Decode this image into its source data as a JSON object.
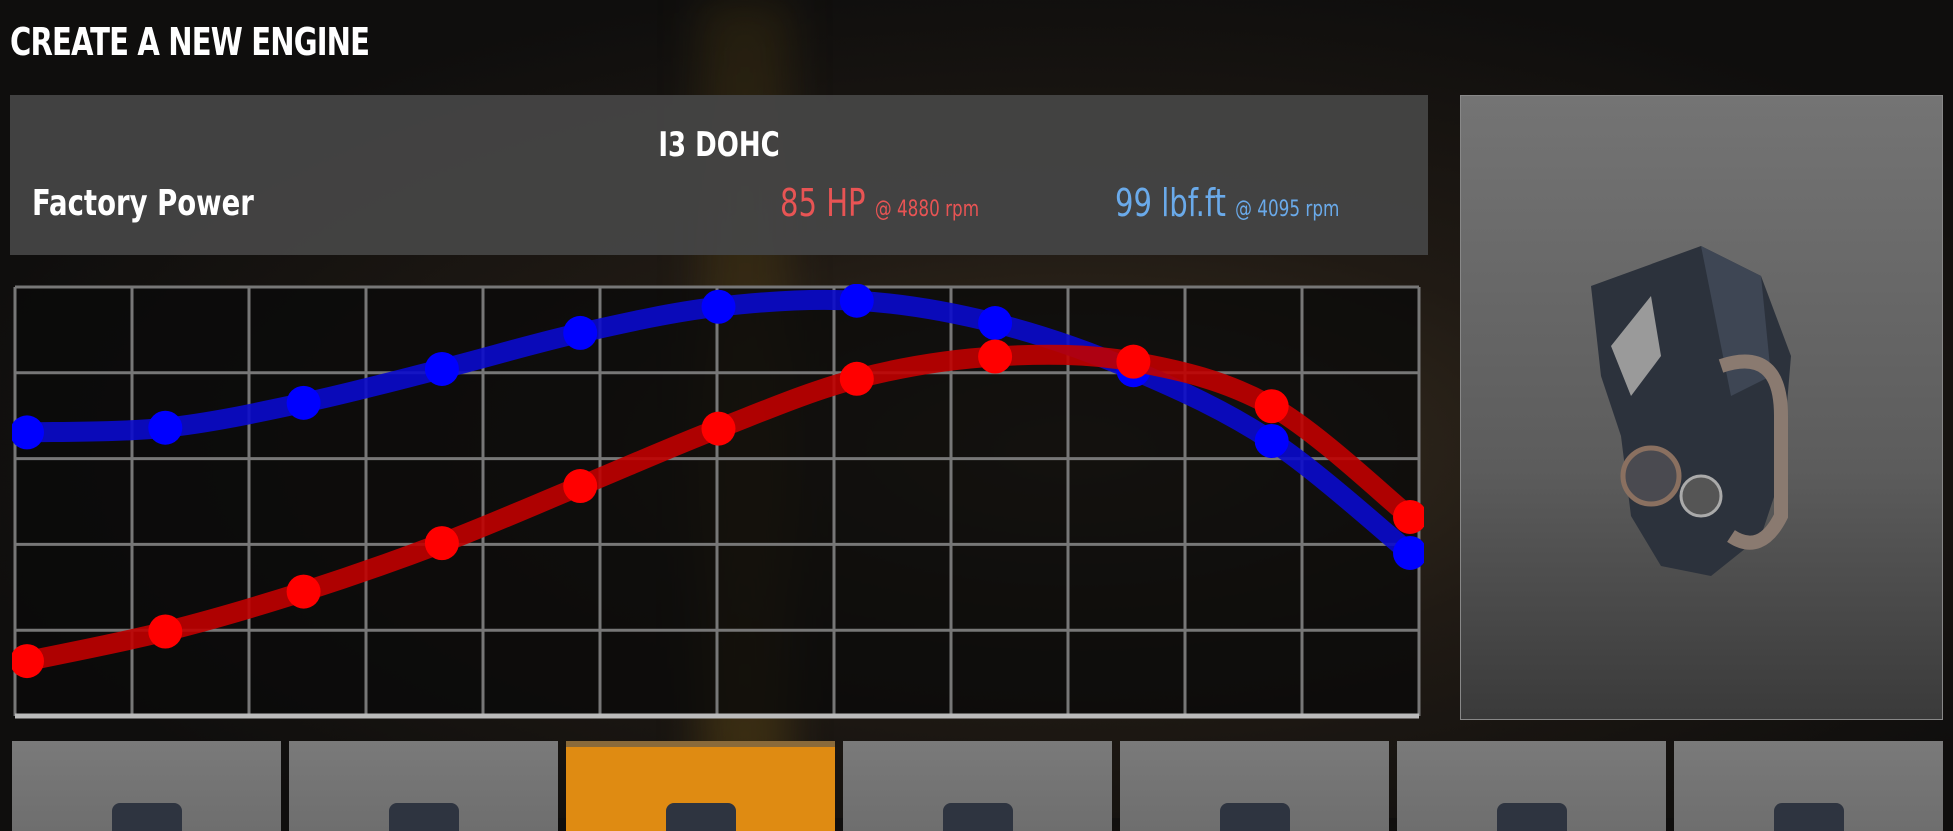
{
  "page": {
    "title": "CREATE A NEW ENGINE"
  },
  "engine": {
    "name": "I3 DOHC",
    "power_label": "Factory Power",
    "hp_value": "85 HP",
    "hp_rpm": "@ 4880 rpm",
    "torque_value": "99 lbf.ft",
    "torque_rpm": "@ 4095 rpm"
  },
  "colors": {
    "hp": "#e85454",
    "torque": "#6aaaea",
    "hp_curve": "#ff0000",
    "torque_curve": "#0000ff",
    "selected_thumb": "#df8b12"
  },
  "chart_data": {
    "type": "line",
    "grid": true,
    "x_divisions": 12,
    "y_divisions": 5,
    "ylim": [
      0,
      100
    ],
    "series": [
      {
        "key": "torque",
        "color": "#0000ff",
        "values": [
          66.1,
          67.2,
          73.0,
          80.9,
          89.3,
          95.4,
          96.8,
          91.6,
          80.6,
          64.1,
          38.0
        ]
      },
      {
        "key": "power",
        "color": "#ff0000",
        "values": [
          12.8,
          19.7,
          29.0,
          40.3,
          53.6,
          67.0,
          78.6,
          83.8,
          82.6,
          72.2,
          46.4
        ]
      }
    ]
  },
  "thumbnails": [
    {
      "selected": false
    },
    {
      "selected": false
    },
    {
      "selected": true
    },
    {
      "selected": false
    },
    {
      "selected": false
    },
    {
      "selected": false
    },
    {
      "selected": false
    }
  ]
}
